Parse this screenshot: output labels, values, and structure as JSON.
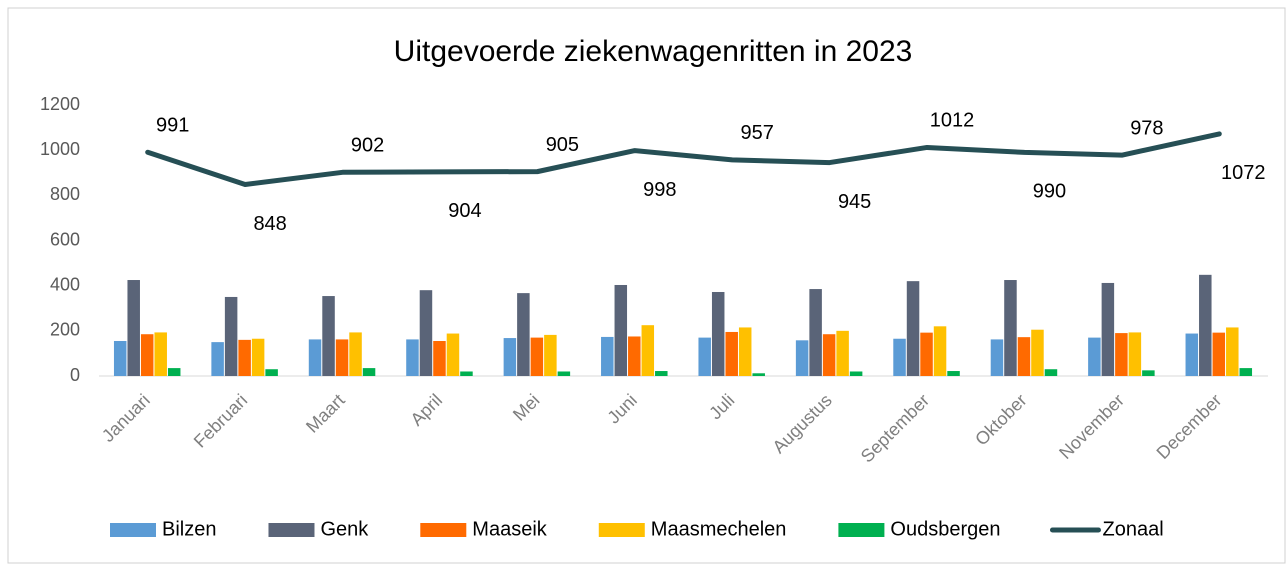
{
  "chart_data": {
    "type": "bar",
    "title": "Uitgevoerde ziekenwagenritten in 2023",
    "categories": [
      "Januari",
      "Februari",
      "Maart",
      "April",
      "Mei",
      "Juni",
      "Juli",
      "Augustus",
      "September",
      "Oktober",
      "November",
      "December"
    ],
    "series": [
      {
        "name": "Bilzen",
        "color": "#5b9bd5",
        "values": [
          155,
          150,
          162,
          162,
          168,
          173,
          170,
          158,
          165,
          162,
          170,
          188
        ]
      },
      {
        "name": "Genk",
        "color": "#5a6478",
        "values": [
          425,
          350,
          354,
          380,
          367,
          403,
          372,
          385,
          420,
          425,
          412,
          448
        ]
      },
      {
        "name": "Maaseik",
        "color": "#ff6a00",
        "values": [
          185,
          160,
          162,
          155,
          170,
          175,
          195,
          185,
          192,
          172,
          190,
          192
        ]
      },
      {
        "name": "Maasmechelen",
        "color": "#ffc000",
        "values": [
          193,
          165,
          193,
          188,
          182,
          225,
          215,
          200,
          220,
          205,
          193,
          215
        ]
      },
      {
        "name": "Oudsbergen",
        "color": "#00b050",
        "values": [
          35,
          30,
          35,
          20,
          20,
          22,
          12,
          20,
          22,
          30,
          25,
          35
        ]
      },
      {
        "name": "Zonaal",
        "type": "line",
        "color": "#264f55",
        "values": [
          991,
          848,
          902,
          904,
          905,
          998,
          957,
          945,
          1012,
          990,
          978,
          1072
        ]
      }
    ],
    "ylim": [
      0,
      1200
    ],
    "yticks": [
      0,
      200,
      400,
      600,
      800,
      1000,
      1200
    ],
    "grid": false,
    "legend": "bottom"
  }
}
